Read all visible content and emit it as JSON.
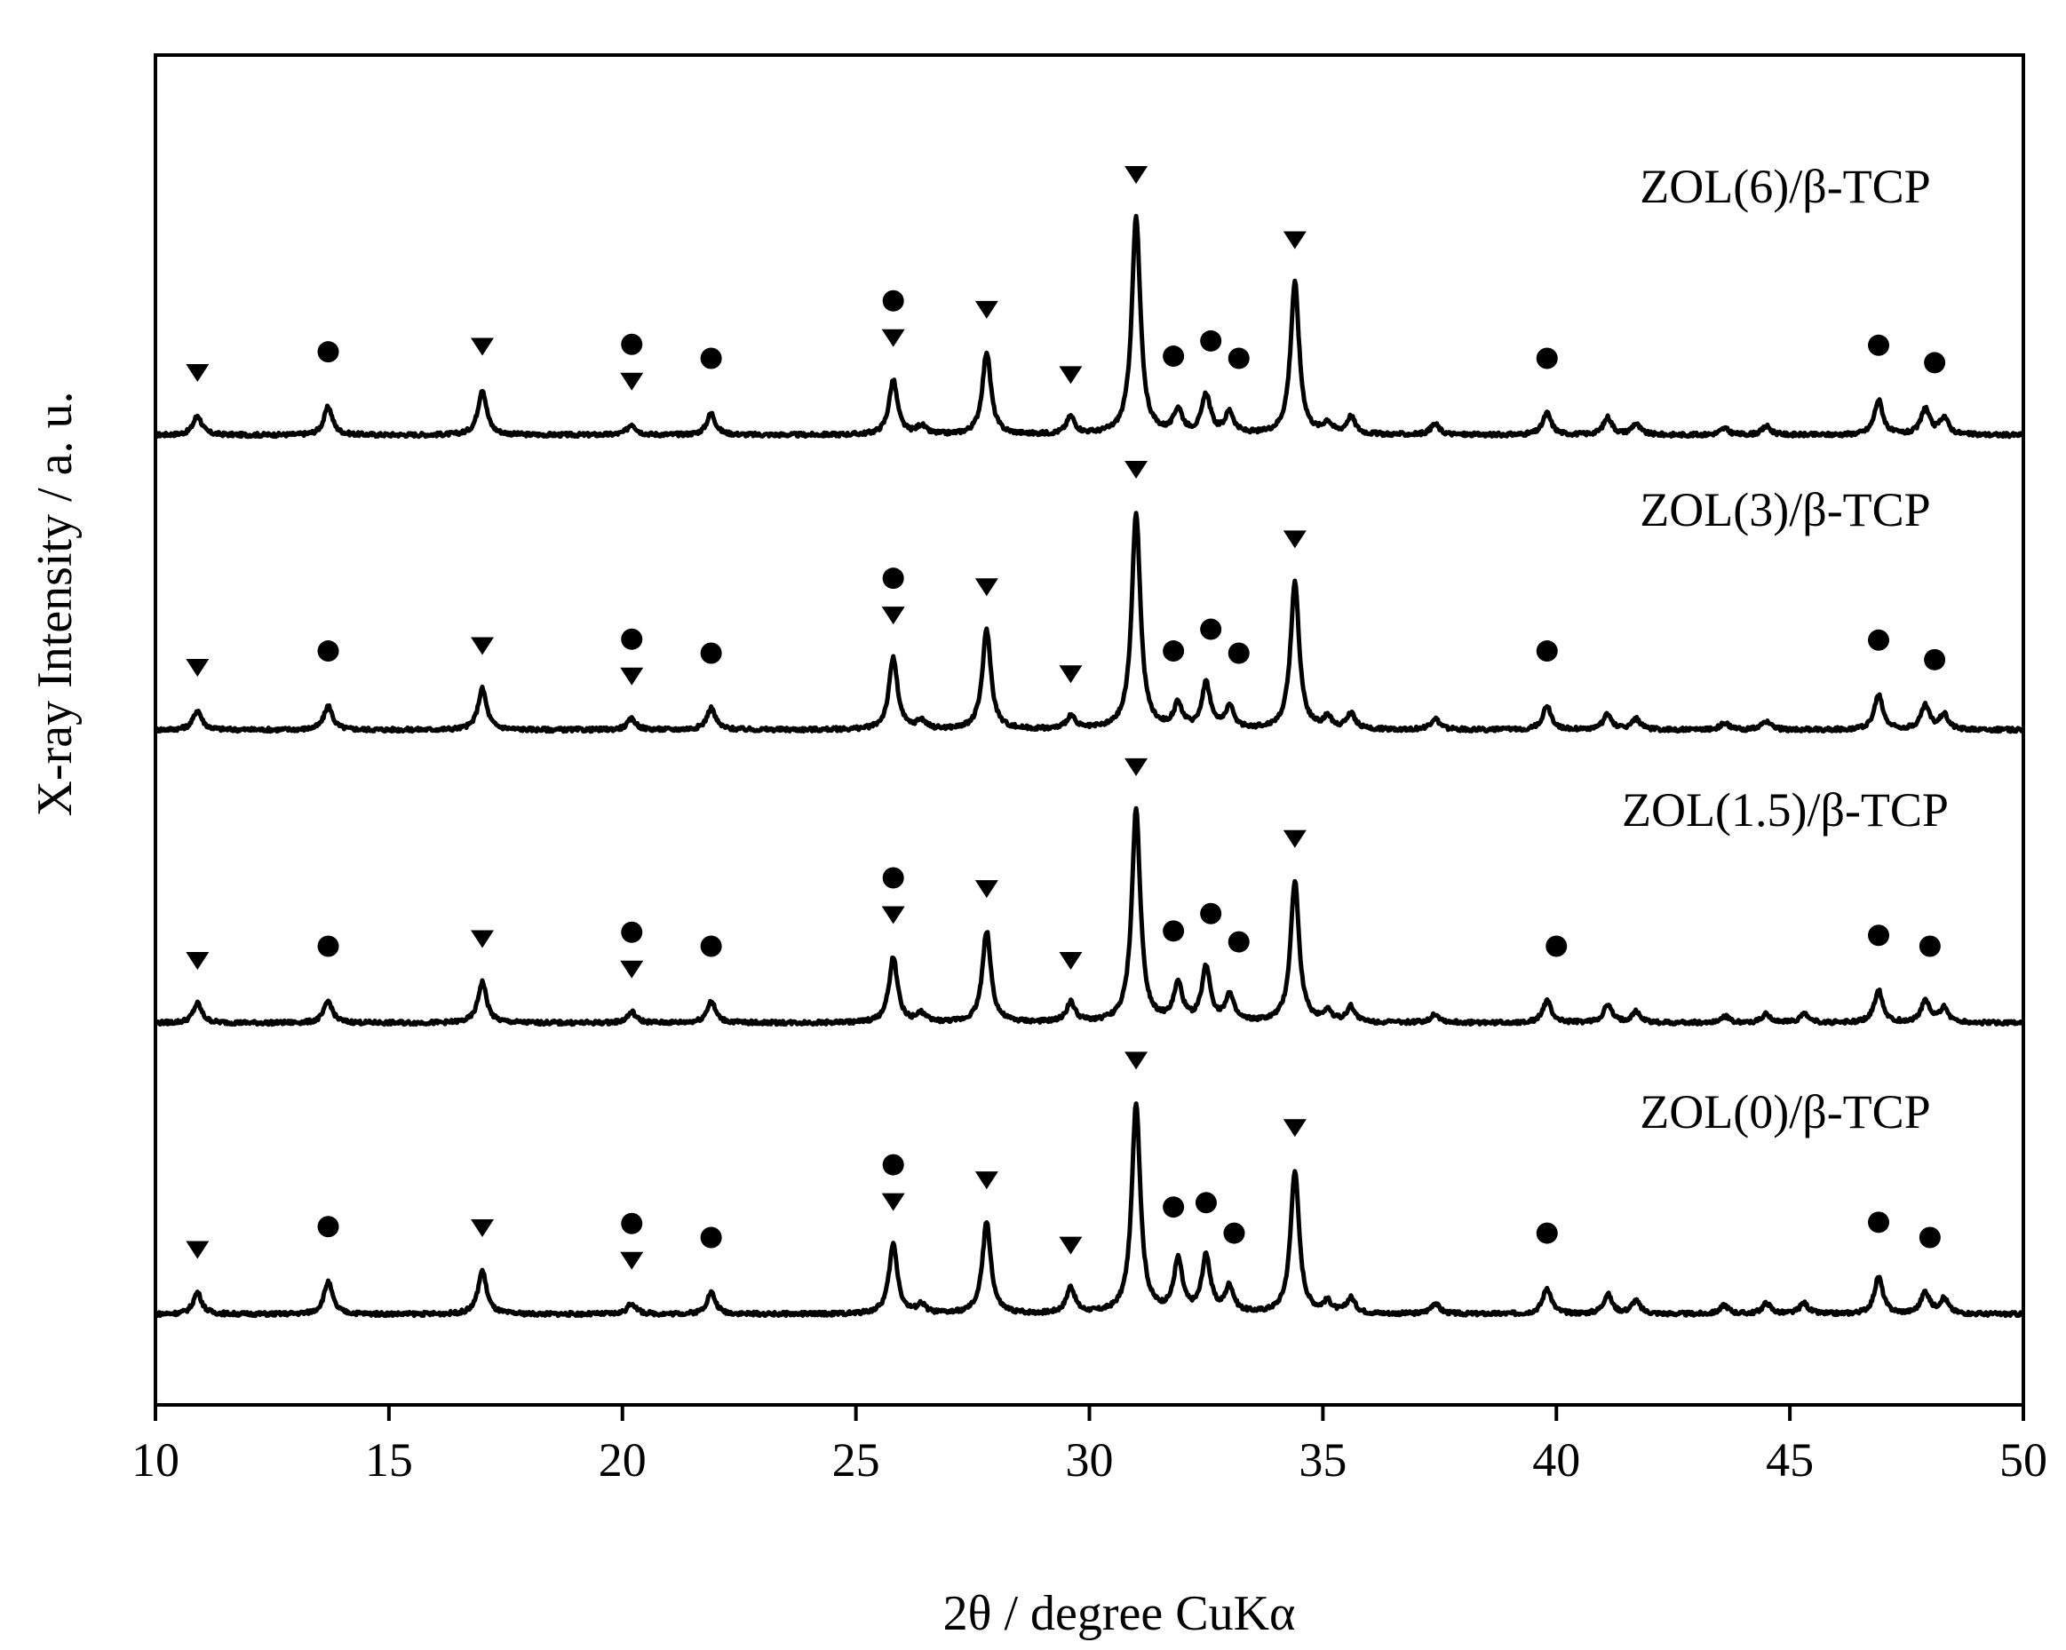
{
  "chart_data": {
    "type": "line",
    "xlabel": "2θ / degree CuKα",
    "ylabel": "X-ray Intensity / a. u.",
    "xlim": [
      10,
      50
    ],
    "xticks": [
      10,
      15,
      20,
      25,
      30,
      35,
      40,
      45,
      50
    ],
    "y_ticks_shown": false,
    "grid": false,
    "legend": "labels placed above each pattern, right side",
    "markers": {
      "triangle": "▼",
      "circle": "●"
    },
    "series": [
      {
        "name": "ZOL(6)/β-TCP",
        "order": 0,
        "peaks": [
          [
            10.9,
            0.09
          ],
          [
            13.7,
            0.13
          ],
          [
            17.0,
            0.21
          ],
          [
            20.2,
            0.05
          ],
          [
            21.9,
            0.1
          ],
          [
            25.8,
            0.25
          ],
          [
            26.4,
            0.04
          ],
          [
            27.8,
            0.38
          ],
          [
            29.6,
            0.08
          ],
          [
            31.0,
            1.0
          ],
          [
            31.9,
            0.11
          ],
          [
            32.5,
            0.18
          ],
          [
            33.0,
            0.1
          ],
          [
            34.4,
            0.7
          ],
          [
            35.1,
            0.05
          ],
          [
            35.6,
            0.08
          ],
          [
            37.4,
            0.05
          ],
          [
            39.8,
            0.1
          ],
          [
            41.1,
            0.08
          ],
          [
            41.7,
            0.05
          ],
          [
            43.6,
            0.03
          ],
          [
            44.5,
            0.04
          ],
          [
            46.9,
            0.16
          ],
          [
            47.9,
            0.12
          ],
          [
            48.3,
            0.08
          ]
        ],
        "triangles": [
          10.9,
          17.0,
          20.2,
          25.8,
          27.8,
          29.6,
          31.0,
          34.4
        ],
        "circles": [
          13.7,
          20.2,
          21.9,
          25.8,
          31.8,
          32.6,
          33.2,
          39.8,
          46.9,
          48.1
        ]
      },
      {
        "name": "ZOL(3)/β-TCP",
        "order": 1,
        "peaks": [
          [
            10.9,
            0.09
          ],
          [
            13.7,
            0.11
          ],
          [
            17.0,
            0.19
          ],
          [
            20.2,
            0.05
          ],
          [
            21.9,
            0.1
          ],
          [
            25.8,
            0.33
          ],
          [
            26.4,
            0.04
          ],
          [
            27.8,
            0.46
          ],
          [
            29.6,
            0.06
          ],
          [
            31.0,
            1.0
          ],
          [
            31.9,
            0.11
          ],
          [
            32.5,
            0.21
          ],
          [
            33.0,
            0.1
          ],
          [
            34.4,
            0.68
          ],
          [
            35.1,
            0.05
          ],
          [
            35.6,
            0.07
          ],
          [
            37.4,
            0.05
          ],
          [
            39.8,
            0.11
          ],
          [
            41.1,
            0.07
          ],
          [
            41.7,
            0.05
          ],
          [
            43.6,
            0.03
          ],
          [
            44.5,
            0.04
          ],
          [
            46.9,
            0.16
          ],
          [
            47.9,
            0.11
          ],
          [
            48.3,
            0.07
          ]
        ],
        "triangles": [
          10.9,
          17.0,
          20.2,
          25.8,
          27.8,
          29.6,
          31.0,
          34.4
        ],
        "circles": [
          13.7,
          20.2,
          21.9,
          25.8,
          31.8,
          32.6,
          33.2,
          39.8,
          46.9,
          48.1
        ]
      },
      {
        "name": "ZOL(1.5)/β-TCP",
        "order": 2,
        "peaks": [
          [
            10.9,
            0.09
          ],
          [
            13.7,
            0.1
          ],
          [
            17.0,
            0.19
          ],
          [
            20.2,
            0.05
          ],
          [
            21.9,
            0.1
          ],
          [
            25.8,
            0.3
          ],
          [
            26.4,
            0.04
          ],
          [
            27.8,
            0.42
          ],
          [
            29.6,
            0.09
          ],
          [
            31.0,
            0.98
          ],
          [
            31.9,
            0.17
          ],
          [
            32.5,
            0.25
          ],
          [
            33.0,
            0.12
          ],
          [
            34.4,
            0.65
          ],
          [
            35.1,
            0.05
          ],
          [
            35.6,
            0.07
          ],
          [
            37.4,
            0.04
          ],
          [
            39.8,
            0.1
          ],
          [
            41.1,
            0.08
          ],
          [
            41.7,
            0.05
          ],
          [
            43.6,
            0.03
          ],
          [
            44.5,
            0.04
          ],
          [
            45.3,
            0.04
          ],
          [
            46.9,
            0.15
          ],
          [
            47.9,
            0.1
          ],
          [
            48.3,
            0.07
          ]
        ],
        "triangles": [
          10.9,
          17.0,
          20.2,
          25.8,
          27.8,
          29.6,
          31.0,
          34.4
        ],
        "circles": [
          13.7,
          20.2,
          21.9,
          25.8,
          31.8,
          32.6,
          33.2,
          40.0,
          46.9,
          48.0
        ]
      },
      {
        "name": "ZOL(0)/β-TCP",
        "order": 3,
        "peaks": [
          [
            10.9,
            0.1
          ],
          [
            13.7,
            0.15
          ],
          [
            17.0,
            0.2
          ],
          [
            20.2,
            0.05
          ],
          [
            21.9,
            0.1
          ],
          [
            25.8,
            0.32
          ],
          [
            26.4,
            0.04
          ],
          [
            27.8,
            0.42
          ],
          [
            29.6,
            0.12
          ],
          [
            31.0,
            0.97
          ],
          [
            31.9,
            0.24
          ],
          [
            32.5,
            0.26
          ],
          [
            33.0,
            0.12
          ],
          [
            34.4,
            0.66
          ],
          [
            35.1,
            0.05
          ],
          [
            35.6,
            0.07
          ],
          [
            37.4,
            0.05
          ],
          [
            39.8,
            0.12
          ],
          [
            41.1,
            0.09
          ],
          [
            41.7,
            0.06
          ],
          [
            43.6,
            0.04
          ],
          [
            44.5,
            0.05
          ],
          [
            45.3,
            0.05
          ],
          [
            46.9,
            0.17
          ],
          [
            47.9,
            0.1
          ],
          [
            48.3,
            0.07
          ]
        ],
        "triangles": [
          10.9,
          17.0,
          20.2,
          25.8,
          27.8,
          29.6,
          31.0,
          34.4
        ],
        "circles": [
          13.7,
          20.2,
          21.9,
          25.8,
          31.8,
          32.5,
          33.1,
          39.8,
          46.9,
          48.0
        ]
      }
    ]
  }
}
